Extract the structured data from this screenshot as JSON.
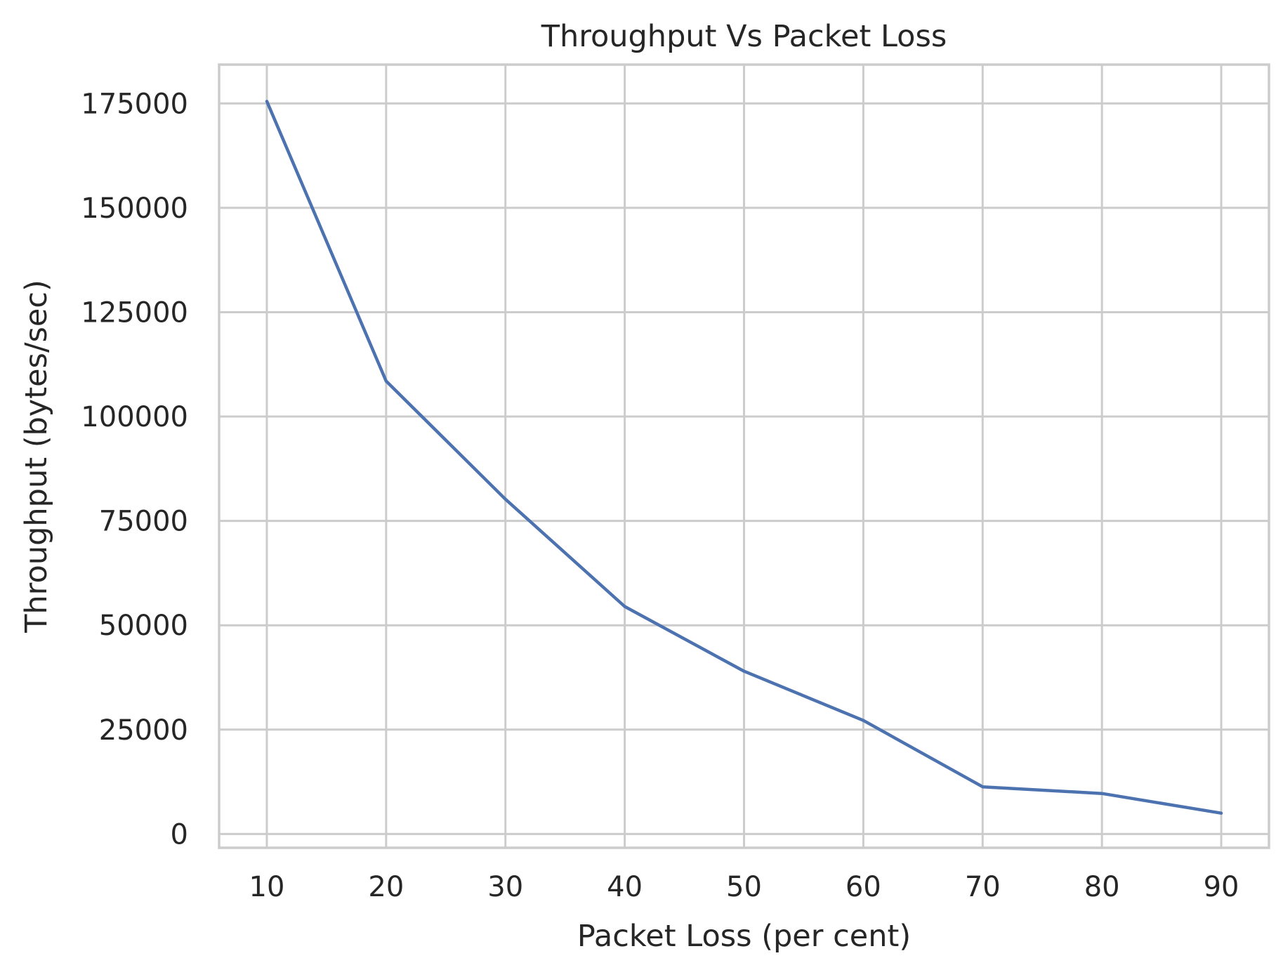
{
  "chart_data": {
    "type": "line",
    "title": "Throughput Vs Packet Loss",
    "xlabel": "Packet Loss (per cent)",
    "ylabel": "Throughput (bytes/sec)",
    "x": [
      10,
      20,
      30,
      40,
      50,
      60,
      70,
      80,
      90
    ],
    "series": [
      {
        "values": [
          175500,
          108500,
          80200,
          54500,
          39000,
          27200,
          11300,
          9700,
          5000
        ],
        "color": "#4c72b0"
      }
    ],
    "xlim": [
      6,
      94
    ],
    "ylim": [
      -3300,
      184300
    ],
    "xticks": [
      10,
      20,
      30,
      40,
      50,
      60,
      70,
      80,
      90
    ],
    "yticks": [
      0,
      25000,
      50000,
      75000,
      100000,
      125000,
      150000,
      175000
    ],
    "grid": true,
    "legend": "none"
  },
  "colors": {
    "grid": "#cccccc",
    "text": "#262626",
    "line": "#4c72b0"
  }
}
